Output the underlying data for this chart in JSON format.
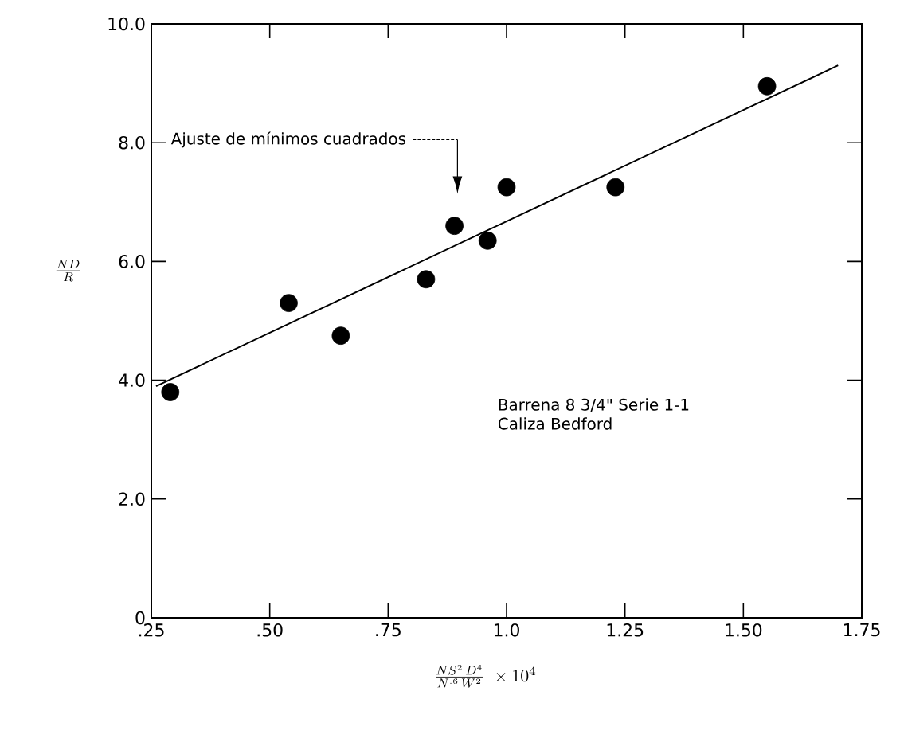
{
  "chart_data": {
    "type": "scatter",
    "xlabel": "\\frac{NS^{2}\\,D^{4}}{N^{.6}\\,W^{2}}\\ \\times 10^{4}",
    "ylabel": "\\frac{ND}{R}",
    "xlim": [
      0.25,
      1.75
    ],
    "xticks": [
      {
        "value": 0.25,
        "label": ".25"
      },
      {
        "value": 0.5,
        "label": ".50"
      },
      {
        "value": 0.75,
        "label": ".75"
      },
      {
        "value": 1.0,
        "label": "1.0"
      },
      {
        "value": 1.25,
        "label": "1.25"
      },
      {
        "value": 1.5,
        "label": "1.50"
      },
      {
        "value": 1.75,
        "label": "1.75"
      }
    ],
    "ylim": [
      0,
      10
    ],
    "yticks": [
      0,
      {
        "value": 2,
        "label": "2.0"
      },
      {
        "value": 4,
        "label": "4.0"
      },
      {
        "value": 6,
        "label": "6.0"
      },
      {
        "value": 8,
        "label": "8.0"
      },
      {
        "value": 10,
        "label": "10.0"
      }
    ],
    "marker": "circle",
    "series": [
      {
        "color": "#000000",
        "x": [
          0.29,
          0.54,
          0.65,
          0.83,
          0.89,
          0.96,
          1.0,
          1.23,
          1.55
        ],
        "values": [
          3.8,
          5.3,
          4.75,
          5.7,
          6.6,
          6.35,
          7.25,
          7.25,
          8.95
        ]
      },
      {
        "type": "line",
        "marker": "none",
        "color": "#000000",
        "x": [
          0.26,
          1.7
        ],
        "values": [
          3.9,
          9.3
        ]
      }
    ],
    "annotations": [
      "Ajuste de mínimos cuadrados",
      "Barrena 8 3/4\" Serie 1-1",
      "Caliza Bedford"
    ]
  }
}
